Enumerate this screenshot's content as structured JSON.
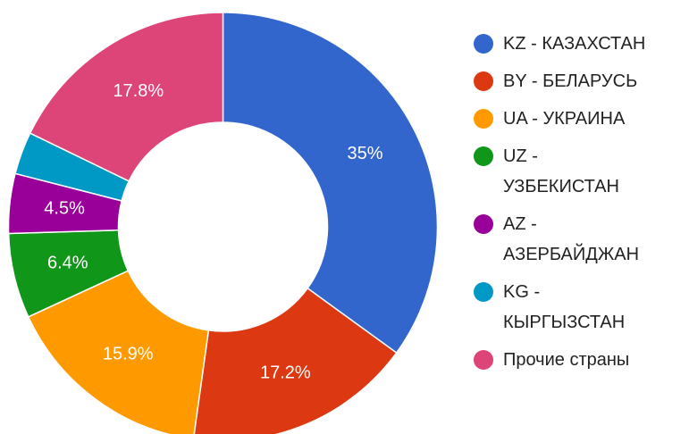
{
  "chart_data": {
    "type": "donut",
    "categories": [
      "KZ - КАЗАХСТАН",
      "BY - БЕЛАРУСЬ",
      "UA - УКРАИНА",
      "UZ - УЗБЕКИСТАН",
      "AZ - АЗЕРБАЙДЖАН",
      "KG - КЫРГЫЗСТАН",
      "Прочие страны"
    ],
    "values": [
      35,
      17.2,
      15.9,
      6.4,
      4.5,
      3.2,
      17.8
    ],
    "value_labels": [
      "35%",
      "17.2%",
      "15.9%",
      "6.4%",
      "4.5%",
      null,
      "17.8%"
    ],
    "colors": [
      "#3366cc",
      "#dc3912",
      "#ff9900",
      "#109618",
      "#990099",
      "#0099c6",
      "#dd4477"
    ],
    "legend": "right"
  }
}
